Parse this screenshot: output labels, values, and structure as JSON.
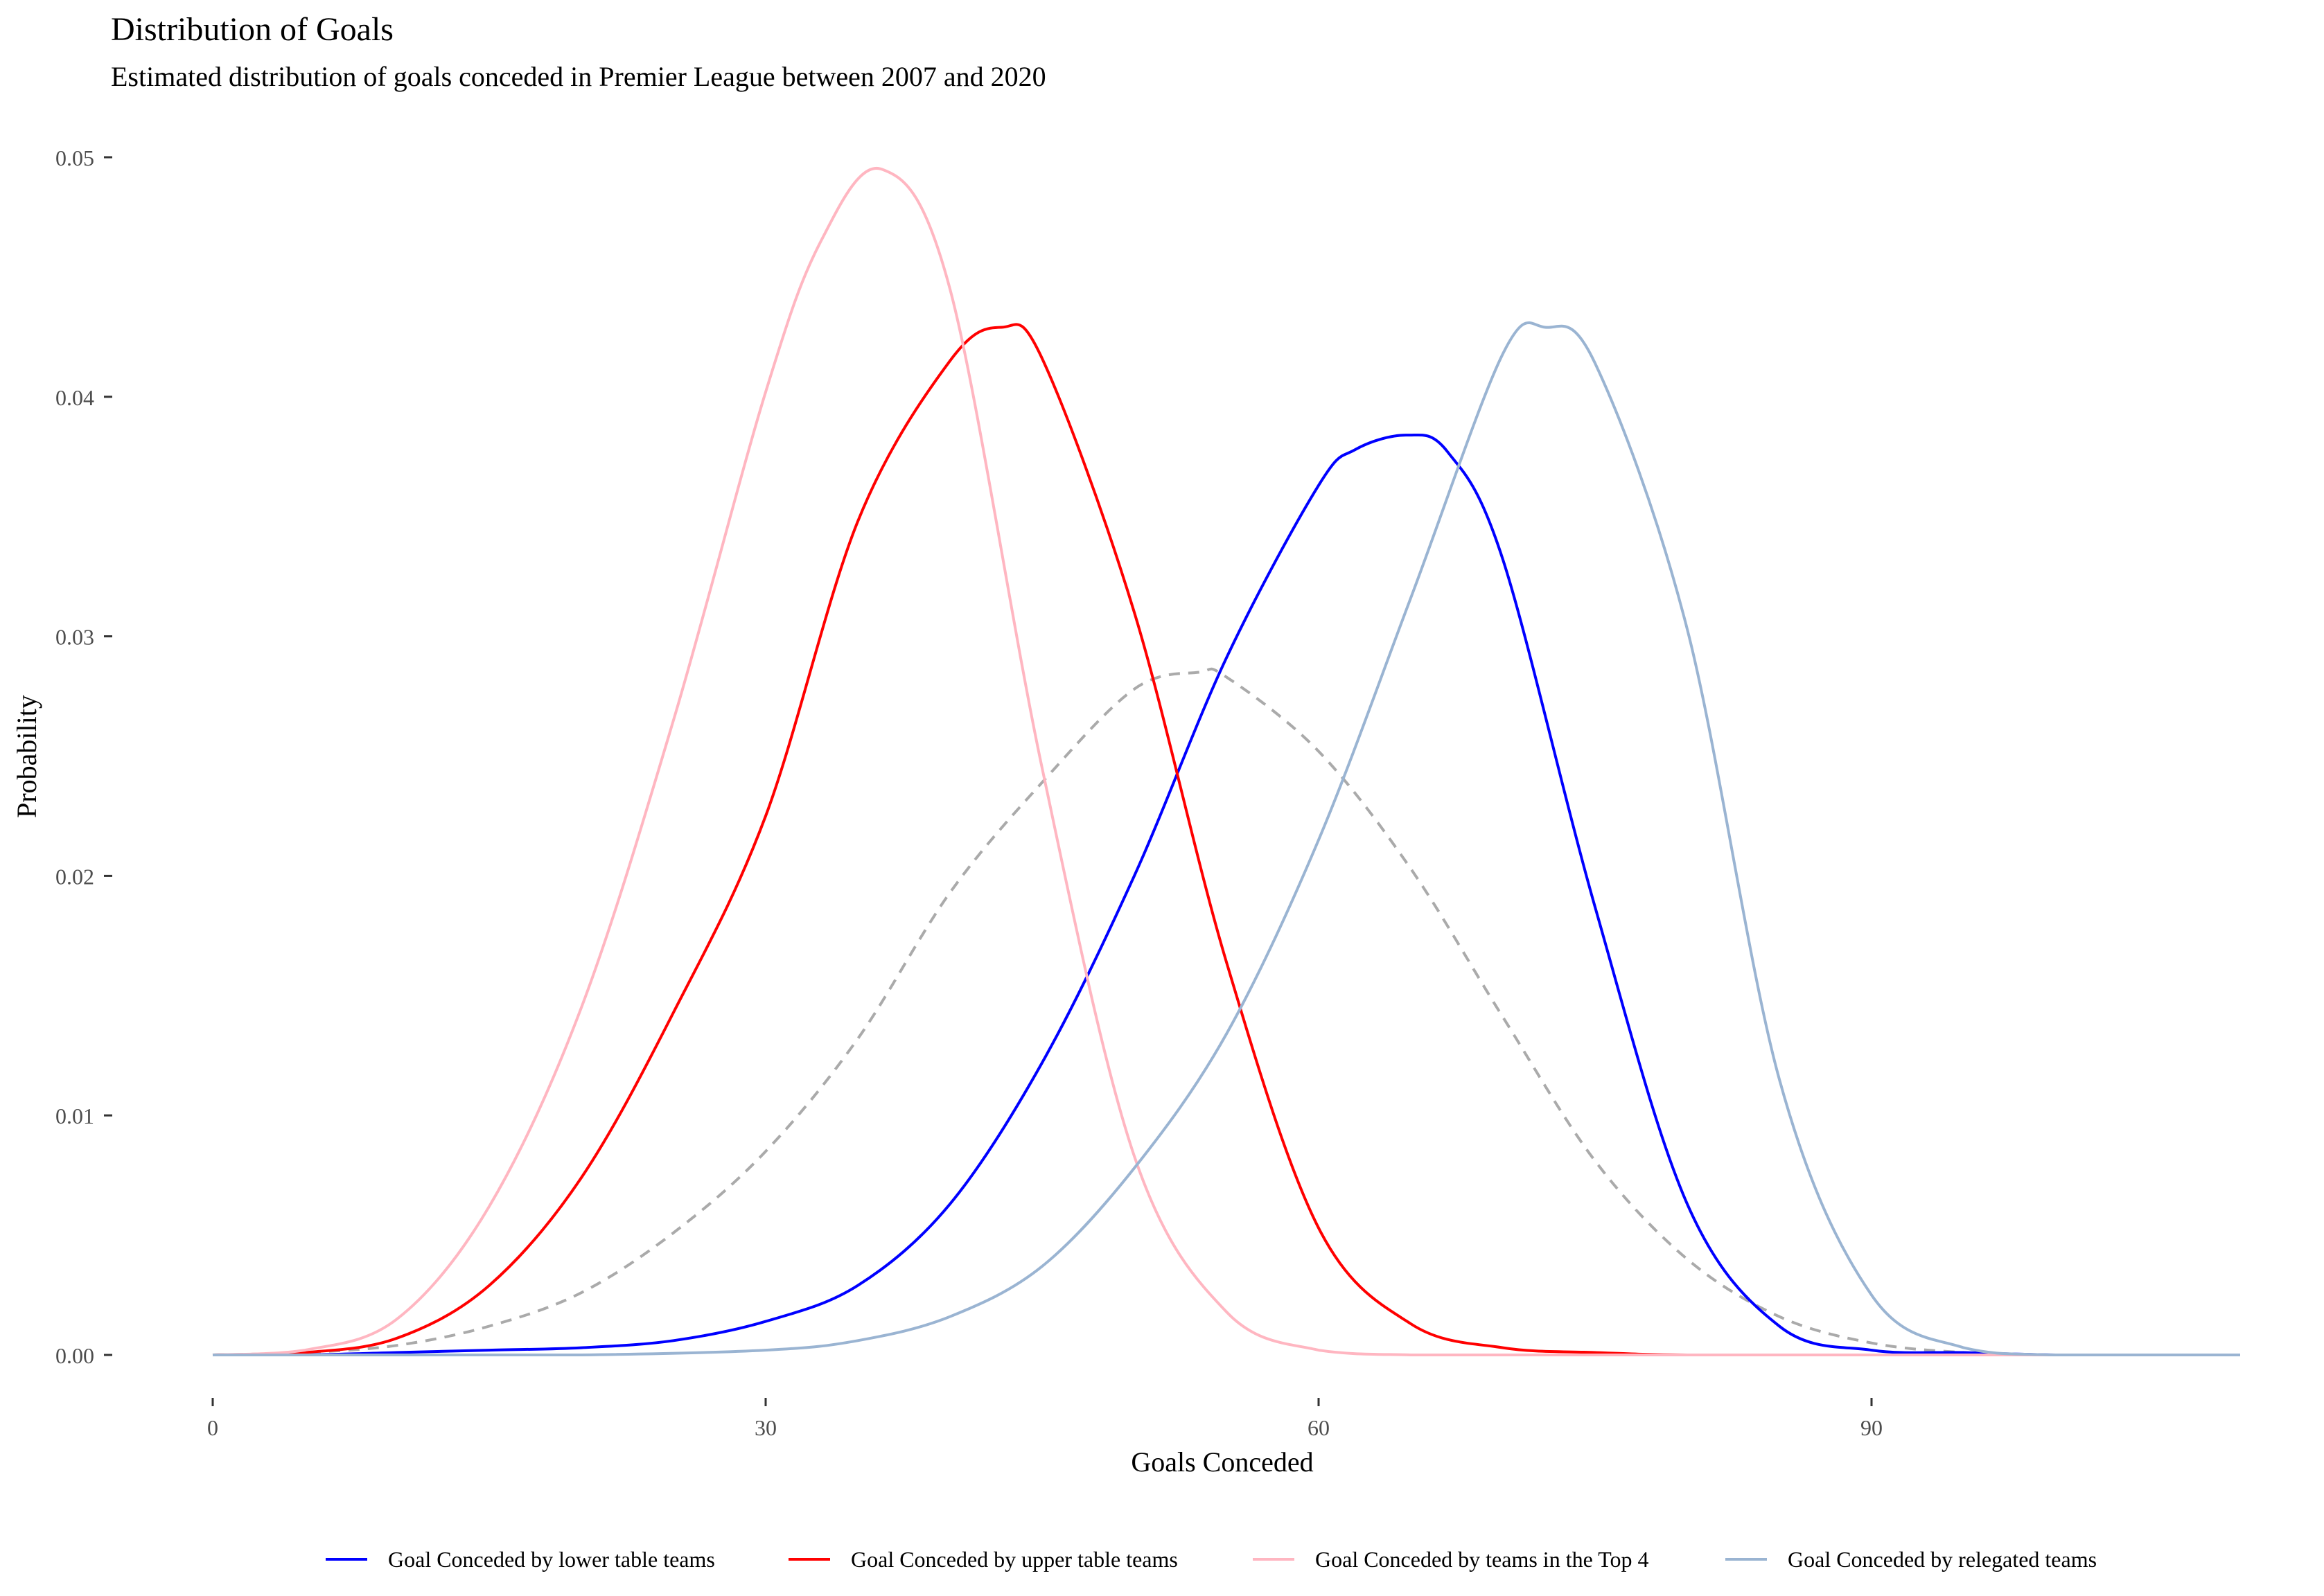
{
  "chart_data": {
    "type": "line",
    "title": "Distribution of Goals",
    "subtitle": "Estimated distribution of goals conceded in Premier League between 2007 and 2020",
    "xlabel": "Goals Conceded",
    "ylabel": "Probability",
    "xlim": [
      0,
      110
    ],
    "ylim": [
      0,
      0.05
    ],
    "x_ticks": [
      0,
      30,
      60,
      90
    ],
    "x_tick_labels": [
      "0",
      "30",
      "60",
      "90"
    ],
    "y_ticks": [
      0,
      0.01,
      0.02,
      0.03,
      0.04,
      0.05
    ],
    "y_tick_labels": [
      "0.00",
      "0.01",
      "0.02",
      "0.03",
      "0.04",
      "0.05"
    ],
    "grid": false,
    "legend_position": "bottom",
    "series": [
      {
        "name": "Goal Conceded by lower table teams",
        "color": "#0000ff",
        "dashed": false,
        "x": [
          0,
          5,
          10,
          15,
          20,
          25,
          30,
          35,
          40,
          45,
          50,
          55,
          60,
          62,
          64.8,
          67,
          70,
          75,
          80,
          85,
          90,
          95,
          100,
          105,
          110
        ],
        "y": [
          0.0,
          0.0,
          0.0001,
          0.0002,
          0.0003,
          0.0006,
          0.0014,
          0.0029,
          0.0063,
          0.0122,
          0.02,
          0.0291,
          0.0363,
          0.0378,
          0.0384,
          0.0377,
          0.0332,
          0.0187,
          0.0063,
          0.0012,
          0.0002,
          0.0001,
          0.0,
          0.0,
          0.0
        ]
      },
      {
        "name": "Goal Conceded by upper table teams",
        "color": "#ff0000",
        "dashed": false,
        "x": [
          0,
          5,
          10,
          15,
          20,
          25,
          30,
          35,
          40,
          42.8,
          45,
          50,
          55,
          60,
          65,
          70,
          75,
          80,
          90,
          100,
          110
        ],
        "y": [
          0.0,
          0.0001,
          0.0007,
          0.0029,
          0.0074,
          0.0143,
          0.0225,
          0.0348,
          0.0415,
          0.0429,
          0.0416,
          0.031,
          0.0164,
          0.0053,
          0.0013,
          0.0003,
          0.0001,
          0.0,
          0.0,
          0.0,
          0.0
        ]
      },
      {
        "name": "Goal Conceded by teams in the Top 4",
        "color": "#ffb6c1",
        "dashed": false,
        "x": [
          0,
          5,
          10,
          15,
          20,
          25,
          30,
          33,
          36.3,
          40,
          45,
          50,
          55,
          60,
          65,
          70,
          80,
          90,
          100,
          110
        ],
        "y": [
          0.0,
          0.0002,
          0.0015,
          0.0062,
          0.0145,
          0.0265,
          0.0402,
          0.0465,
          0.0495,
          0.0445,
          0.0245,
          0.0083,
          0.0018,
          0.0002,
          0.0,
          0.0,
          0.0,
          0.0,
          0.0,
          0.0
        ]
      },
      {
        "name": "Goal Conceded by relegated teams",
        "color": "#9ab4d2",
        "dashed": false,
        "x": [
          0,
          10,
          20,
          30,
          35,
          40,
          45,
          50,
          55,
          60,
          65,
          70,
          72.3,
          75,
          80,
          85,
          90,
          95,
          100,
          110
        ],
        "y": [
          0.0,
          0.0,
          0.0,
          0.0002,
          0.0006,
          0.0016,
          0.0037,
          0.0078,
          0.0134,
          0.0215,
          0.0316,
          0.0418,
          0.0429,
          0.0414,
          0.0303,
          0.0115,
          0.0025,
          0.0003,
          0.0,
          0.0
        ]
      },
      {
        "color": "#aaaaaa",
        "dashed": true,
        "x": [
          0,
          5,
          10,
          15,
          20,
          25,
          30,
          35,
          40,
          45,
          50,
          53.5,
          55,
          60,
          65,
          70,
          75,
          80,
          85,
          90,
          95,
          100,
          110
        ],
        "y": [
          0.0,
          0.0001,
          0.0004,
          0.0012,
          0.0026,
          0.0051,
          0.0085,
          0.0132,
          0.0193,
          0.0239,
          0.0278,
          0.0285,
          0.0283,
          0.0252,
          0.0203,
          0.0141,
          0.0081,
          0.004,
          0.0016,
          0.0005,
          0.0001,
          0.0,
          0.0
        ]
      }
    ]
  }
}
